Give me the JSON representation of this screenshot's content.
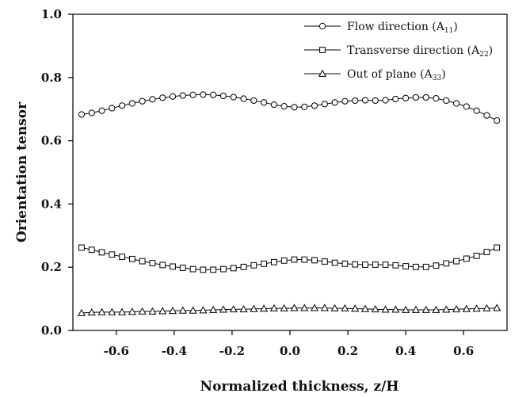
{
  "chart_data": {
    "type": "line",
    "xlabel": "Normalized thickness, z/H",
    "ylabel": "Orientation tensor",
    "xlim": [
      -0.75,
      0.75
    ],
    "ylim": [
      0.0,
      1.0
    ],
    "x_ticks": [
      -0.6,
      -0.4,
      -0.2,
      0.0,
      0.2,
      0.4,
      0.6
    ],
    "y_ticks": [
      0.0,
      0.2,
      0.4,
      0.6,
      0.8,
      1.0
    ],
    "x_tick_labels": [
      "-0.6",
      "-0.4",
      "-0.2",
      "0.0",
      "0.2",
      "0.4",
      "0.6"
    ],
    "y_tick_labels": [
      "0.0",
      "0.2",
      "0.4",
      "0.6",
      "0.8",
      "1.0"
    ],
    "grid": false,
    "legend_position": "top-right",
    "x": [
      -0.72,
      -0.685,
      -0.65,
      -0.615,
      -0.58,
      -0.545,
      -0.51,
      -0.475,
      -0.44,
      -0.405,
      -0.37,
      -0.335,
      -0.3,
      -0.265,
      -0.23,
      -0.195,
      -0.16,
      -0.125,
      -0.09,
      -0.055,
      -0.02,
      0.015,
      0.05,
      0.085,
      0.12,
      0.155,
      0.19,
      0.225,
      0.26,
      0.295,
      0.33,
      0.365,
      0.4,
      0.435,
      0.47,
      0.505,
      0.54,
      0.575,
      0.61,
      0.645,
      0.68,
      0.715
    ],
    "series": [
      {
        "name": "Flow direction (A",
        "subscript": "11",
        "name_suffix": ")",
        "marker": "circle",
        "values": [
          0.683,
          0.688,
          0.695,
          0.703,
          0.711,
          0.718,
          0.725,
          0.731,
          0.736,
          0.74,
          0.743,
          0.745,
          0.746,
          0.745,
          0.742,
          0.738,
          0.733,
          0.727,
          0.721,
          0.714,
          0.709,
          0.706,
          0.707,
          0.711,
          0.716,
          0.721,
          0.725,
          0.727,
          0.728,
          0.727,
          0.728,
          0.732,
          0.735,
          0.737,
          0.737,
          0.734,
          0.727,
          0.718,
          0.708,
          0.695,
          0.68,
          0.664
        ]
      },
      {
        "name": "Transverse direction (A",
        "subscript": "22",
        "name_suffix": ")",
        "marker": "square",
        "values": [
          0.262,
          0.255,
          0.247,
          0.24,
          0.233,
          0.226,
          0.219,
          0.213,
          0.207,
          0.202,
          0.198,
          0.194,
          0.192,
          0.192,
          0.194,
          0.197,
          0.201,
          0.206,
          0.211,
          0.216,
          0.221,
          0.224,
          0.224,
          0.222,
          0.218,
          0.214,
          0.211,
          0.209,
          0.208,
          0.208,
          0.208,
          0.206,
          0.203,
          0.201,
          0.201,
          0.205,
          0.212,
          0.219,
          0.227,
          0.236,
          0.248,
          0.262
        ]
      },
      {
        "name": "Out of plane (A",
        "subscript": "33",
        "name_suffix": ")",
        "marker": "triangle",
        "values": [
          0.055,
          0.057,
          0.058,
          0.058,
          0.058,
          0.059,
          0.06,
          0.06,
          0.061,
          0.062,
          0.063,
          0.063,
          0.064,
          0.065,
          0.066,
          0.067,
          0.067,
          0.068,
          0.069,
          0.07,
          0.07,
          0.071,
          0.071,
          0.071,
          0.071,
          0.07,
          0.07,
          0.069,
          0.068,
          0.067,
          0.066,
          0.066,
          0.065,
          0.065,
          0.065,
          0.065,
          0.066,
          0.067,
          0.068,
          0.069,
          0.07,
          0.071
        ]
      }
    ]
  }
}
